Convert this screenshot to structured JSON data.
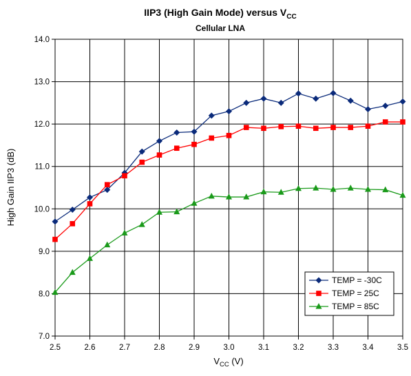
{
  "chart_data": {
    "type": "line",
    "title": "IIP3 (High Gain Mode) versus V",
    "title_sub": "CC",
    "subtitle": "Cellular LNA",
    "xlabel": "V",
    "xlabel_sub": "CC",
    "xlabel_suffix": " (V)",
    "ylabel": "High Gain IIP3 (dB)",
    "xlim": [
      2.5,
      3.5
    ],
    "ylim": [
      7.0,
      14.0
    ],
    "x_ticks": [
      "2.5",
      "2.6",
      "2.7",
      "2.8",
      "2.9",
      "3.0",
      "3.1",
      "3.2",
      "3.3",
      "3.4",
      "3.5"
    ],
    "y_ticks": [
      "7.0",
      "8.0",
      "9.0",
      "10.0",
      "11.0",
      "12.0",
      "13.0",
      "14.0"
    ],
    "grid": true,
    "legend_position": "bottom-right",
    "x": [
      2.5,
      2.55,
      2.6,
      2.65,
      2.7,
      2.75,
      2.8,
      2.85,
      2.9,
      2.95,
      3.0,
      3.05,
      3.1,
      3.15,
      3.2,
      3.25,
      3.3,
      3.35,
      3.4,
      3.45,
      3.5
    ],
    "series": [
      {
        "name": "TEMP = -30C",
        "color": "#0a2a7a",
        "marker": "diamond",
        "values": [
          9.7,
          9.98,
          10.27,
          10.45,
          10.85,
          11.35,
          11.6,
          11.8,
          11.82,
          12.2,
          12.3,
          12.5,
          12.6,
          12.5,
          12.72,
          12.6,
          12.73,
          12.55,
          12.35,
          12.43,
          12.53
        ]
      },
      {
        "name": "TEMP = 25C",
        "color": "#ff0000",
        "marker": "square",
        "values": [
          9.28,
          9.65,
          10.12,
          10.57,
          10.78,
          11.1,
          11.27,
          11.43,
          11.52,
          11.67,
          11.73,
          11.92,
          11.9,
          11.94,
          11.95,
          11.9,
          11.92,
          11.92,
          11.95,
          12.05,
          12.05
        ]
      },
      {
        "name": "TEMP = 85C",
        "color": "#1a9a1a",
        "marker": "triangle",
        "values": [
          8.03,
          8.5,
          8.83,
          9.15,
          9.43,
          9.63,
          9.92,
          9.93,
          10.13,
          10.3,
          10.28,
          10.28,
          10.4,
          10.39,
          10.48,
          10.49,
          10.46,
          10.49,
          10.46,
          10.45,
          10.32
        ]
      }
    ]
  }
}
